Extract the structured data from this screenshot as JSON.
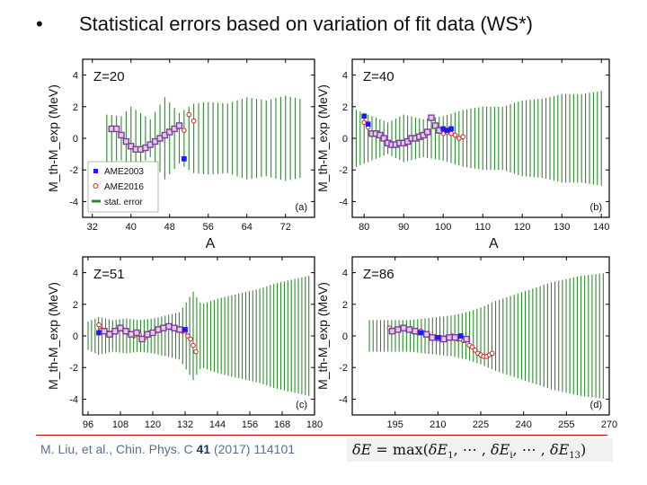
{
  "slide": {
    "bullet": "•",
    "title": "Statistical errors based on variation of fit data  (WS*)"
  },
  "footer": {
    "authors": "M. Liu, et al., Chin. Phys. C",
    "volume": "41",
    "rest": "(2017) 114101",
    "formula": {
      "lhs": "δE",
      "eq": "=",
      "fn": "max",
      "open": "(",
      "t1": "δE",
      "s1": "1",
      "dots": ", ⋯ , ",
      "ti": "δE",
      "si": "i",
      "dots2": ", ⋯ , ",
      "t13": "δE",
      "s13": "13",
      "close": ")"
    }
  },
  "colors": {
    "error_bar": "#2e8b2e",
    "ame2003": "#1a1aff",
    "ame2016": "#d02020",
    "combined_square": "#7b3fa0",
    "axes": "#000000"
  },
  "chart_data": [
    {
      "type": "scatter",
      "panel_tag": "(a)",
      "label": "Z=20",
      "xlabel": "A",
      "ylabel": "M_th-M_exp (MeV)",
      "xlim": [
        30,
        78
      ],
      "ylim": [
        -5,
        5
      ],
      "xticks": [
        32,
        40,
        48,
        56,
        64,
        72
      ],
      "yticks": [
        -4,
        -2,
        0,
        2,
        4
      ],
      "error_band": {
        "a_min": 35,
        "a_max": 75,
        "step": 1,
        "profile": [
          [
            35,
            1.5
          ],
          [
            38,
            1.4
          ],
          [
            40,
            2.0
          ],
          [
            44,
            1.2
          ],
          [
            47,
            2.6
          ],
          [
            50,
            1.6
          ],
          [
            53,
            2.2
          ],
          [
            56,
            2.3
          ],
          [
            60,
            2.2
          ],
          [
            64,
            2.6
          ],
          [
            68,
            2.4
          ],
          [
            72,
            2.7
          ],
          [
            75,
            2.5
          ]
        ]
      },
      "series": [
        {
          "name": "AME2003",
          "marker": "filled-square",
          "color": "#1a1aff",
          "x": [
            36,
            37,
            38,
            39,
            40,
            41,
            42,
            43,
            44,
            45,
            46,
            47,
            48,
            49,
            50,
            51
          ],
          "y": [
            0.6,
            0.6,
            0.2,
            -0.2,
            -0.5,
            -0.7,
            -0.7,
            -0.6,
            -0.4,
            -0.2,
            0.0,
            0.2,
            0.4,
            0.6,
            0.8,
            -1.3
          ]
        },
        {
          "name": "AME2016",
          "marker": "open-circle",
          "color": "#d02020",
          "x": [
            36,
            37,
            38,
            39,
            40,
            41,
            42,
            43,
            44,
            45,
            46,
            47,
            48,
            49,
            50,
            51,
            52,
            53
          ],
          "y": [
            0.6,
            0.6,
            0.2,
            -0.2,
            -0.5,
            -0.7,
            -0.7,
            -0.6,
            -0.4,
            -0.2,
            0.0,
            0.2,
            0.4,
            0.6,
            0.8,
            0.5,
            1.5,
            1.1
          ]
        }
      ],
      "legend": {
        "position": "bottom-left",
        "entries": [
          "AME2003",
          "AME2016",
          "stat. error"
        ]
      }
    },
    {
      "type": "scatter",
      "panel_tag": "(b)",
      "label": "Z=40",
      "xlabel": "A",
      "ylabel": "M_th-M_exp (MeV)",
      "xlim": [
        77,
        142
      ],
      "ylim": [
        -5,
        5
      ],
      "xticks": [
        80,
        90,
        100,
        110,
        120,
        130,
        140
      ],
      "yticks": [
        -4,
        -2,
        0,
        2,
        4
      ],
      "error_band": {
        "a_min": 78,
        "a_max": 140,
        "step": 1,
        "profile": [
          [
            78,
            1.8
          ],
          [
            82,
            1.4
          ],
          [
            86,
            1.0
          ],
          [
            90,
            1.5
          ],
          [
            95,
            1.2
          ],
          [
            100,
            1.4
          ],
          [
            105,
            1.8
          ],
          [
            110,
            2.0
          ],
          [
            115,
            2.0
          ],
          [
            120,
            2.4
          ],
          [
            125,
            2.5
          ],
          [
            130,
            2.8
          ],
          [
            135,
            2.8
          ],
          [
            140,
            3.0
          ]
        ]
      },
      "series": [
        {
          "name": "AME2003",
          "marker": "filled-square",
          "color": "#1a1aff",
          "x": [
            80,
            81,
            82,
            83,
            84,
            85,
            86,
            87,
            88,
            89,
            90,
            91,
            92,
            93,
            94,
            95,
            96,
            97,
            98,
            99,
            100,
            101,
            102
          ],
          "y": [
            1.4,
            0.9,
            0.3,
            0.3,
            0.2,
            0.0,
            -0.3,
            -0.4,
            -0.4,
            -0.3,
            -0.3,
            -0.2,
            0.0,
            0.0,
            0.1,
            0.2,
            0.4,
            1.3,
            0.8,
            0.5,
            0.6,
            0.5,
            0.6
          ]
        },
        {
          "name": "AME2016",
          "marker": "open-circle",
          "color": "#d02020",
          "x": [
            80,
            81,
            82,
            83,
            84,
            85,
            86,
            87,
            88,
            89,
            90,
            91,
            92,
            93,
            94,
            95,
            96,
            97,
            98,
            99,
            100,
            101,
            102,
            103,
            104,
            105
          ],
          "y": [
            1.0,
            0.7,
            0.3,
            0.3,
            0.2,
            0.0,
            -0.3,
            -0.4,
            -0.4,
            -0.3,
            -0.3,
            -0.2,
            0.0,
            0.0,
            0.1,
            0.2,
            0.4,
            1.3,
            0.8,
            0.5,
            0.3,
            0.4,
            0.3,
            0.2,
            0.0,
            0.1
          ]
        }
      ]
    },
    {
      "type": "scatter",
      "panel_tag": "(c)",
      "label": "Z=51",
      "xlabel": "",
      "ylabel": "M_th-M_exp (MeV)",
      "xlim": [
        94,
        180
      ],
      "ylim": [
        -5,
        5
      ],
      "xticks": [
        96,
        108,
        120,
        132,
        144,
        156,
        168,
        180
      ],
      "yticks": [
        -4,
        -2,
        0,
        2,
        4
      ],
      "error_band": {
        "a_min": 96,
        "a_max": 178,
        "step": 1.3,
        "profile": [
          [
            96,
            0.9
          ],
          [
            100,
            1.2
          ],
          [
            105,
            1.0
          ],
          [
            110,
            1.1
          ],
          [
            115,
            1.0
          ],
          [
            120,
            1.1
          ],
          [
            125,
            1.3
          ],
          [
            130,
            1.5
          ],
          [
            135,
            2.8
          ],
          [
            138,
            2.0
          ],
          [
            145,
            2.4
          ],
          [
            150,
            2.6
          ],
          [
            155,
            2.8
          ],
          [
            160,
            3.0
          ],
          [
            165,
            3.3
          ],
          [
            170,
            3.5
          ],
          [
            178,
            3.8
          ]
        ]
      },
      "series": [
        {
          "name": "AME2003",
          "marker": "filled-square",
          "color": "#1a1aff",
          "x": [
            100,
            102,
            104,
            106,
            108,
            110,
            112,
            114,
            116,
            118,
            120,
            122,
            124,
            126,
            128,
            130,
            132
          ],
          "y": [
            0.2,
            0.3,
            0.1,
            0.3,
            0.5,
            0.3,
            0.1,
            0.2,
            -0.2,
            0.1,
            0.2,
            0.4,
            0.5,
            0.6,
            0.5,
            0.4,
            0.4
          ]
        },
        {
          "name": "AME2016",
          "marker": "open-circle",
          "color": "#d02020",
          "x": [
            100,
            101,
            102,
            103,
            104,
            105,
            106,
            107,
            108,
            109,
            110,
            111,
            112,
            113,
            114,
            115,
            116,
            117,
            118,
            119,
            120,
            121,
            122,
            123,
            124,
            125,
            126,
            127,
            128,
            129,
            130,
            131,
            132,
            133,
            134,
            135,
            136
          ],
          "y": [
            0.7,
            0.4,
            0.3,
            0.2,
            0.1,
            0.2,
            0.3,
            0.4,
            0.5,
            0.4,
            0.3,
            0.2,
            0.1,
            0.0,
            0.2,
            0.1,
            -0.2,
            -0.1,
            0.1,
            0.2,
            0.2,
            0.3,
            0.4,
            0.5,
            0.5,
            0.6,
            0.6,
            0.5,
            0.5,
            0.4,
            0.4,
            0.3,
            0.3,
            0.0,
            -0.2,
            -0.6,
            -1.0
          ]
        }
      ]
    },
    {
      "type": "scatter",
      "panel_tag": "(d)",
      "label": "Z=86",
      "xlabel": "",
      "ylabel": "M_th-M_exp (MeV)",
      "xlim": [
        180,
        270
      ],
      "ylim": [
        -5,
        5
      ],
      "xticks": [
        195,
        210,
        225,
        240,
        255,
        270
      ],
      "yticks": [
        -4,
        -2,
        0,
        2,
        4
      ],
      "error_band": {
        "a_min": 186,
        "a_max": 269,
        "step": 1.3,
        "profile": [
          [
            186,
            1.0
          ],
          [
            190,
            1.0
          ],
          [
            195,
            1.0
          ],
          [
            200,
            1.0
          ],
          [
            205,
            1.1
          ],
          [
            210,
            1.2
          ],
          [
            215,
            1.3
          ],
          [
            220,
            1.5
          ],
          [
            225,
            1.8
          ],
          [
            230,
            2.2
          ],
          [
            235,
            2.5
          ],
          [
            240,
            2.8
          ],
          [
            245,
            3.1
          ],
          [
            250,
            3.4
          ],
          [
            255,
            3.6
          ],
          [
            260,
            3.8
          ],
          [
            265,
            3.9
          ],
          [
            269,
            4.0
          ]
        ]
      },
      "series": [
        {
          "name": "AME2003",
          "marker": "filled-square",
          "color": "#1a1aff",
          "x": [
            194,
            196,
            198,
            200,
            202,
            204,
            206,
            208,
            210,
            212,
            214,
            216,
            218,
            220
          ],
          "y": [
            0.3,
            0.4,
            0.5,
            0.4,
            0.3,
            0.2,
            0.1,
            -0.1,
            -0.1,
            -0.2,
            -0.1,
            -0.1,
            0.0,
            -0.2
          ]
        },
        {
          "name": "AME2016",
          "marker": "open-circle",
          "color": "#d02020",
          "x": [
            193,
            194,
            195,
            196,
            197,
            198,
            199,
            200,
            201,
            202,
            203,
            204,
            205,
            206,
            207,
            208,
            209,
            210,
            211,
            212,
            213,
            214,
            215,
            216,
            217,
            218,
            219,
            220,
            221,
            222,
            223,
            224,
            225,
            226,
            227,
            228,
            229
          ],
          "y": [
            0.5,
            0.3,
            0.4,
            0.4,
            0.5,
            0.5,
            0.4,
            0.4,
            0.3,
            0.3,
            0.2,
            0.3,
            0.2,
            0.1,
            0.0,
            -0.1,
            -0.1,
            -0.2,
            -0.1,
            -0.2,
            -0.1,
            -0.1,
            0.0,
            -0.1,
            -0.2,
            -0.2,
            -0.3,
            -0.2,
            -0.6,
            -0.7,
            -0.9,
            -1.1,
            -1.2,
            -1.3,
            -1.3,
            -1.2,
            -1.1
          ]
        }
      ]
    }
  ]
}
